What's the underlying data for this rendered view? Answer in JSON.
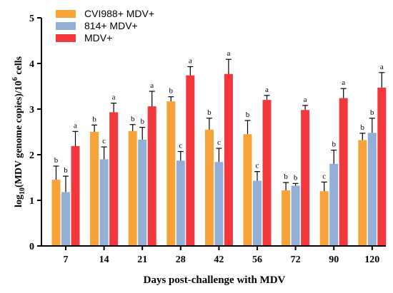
{
  "chart_data": {
    "type": "bar",
    "categories": [
      "7",
      "14",
      "21",
      "28",
      "42",
      "56",
      "72",
      "90",
      "120"
    ],
    "xlabel": "Days post-challenge with MDV",
    "ylabel": {
      "prefix": "log",
      "sub": "10",
      "middle": "(MDV genome copies)/10",
      "sup": "6",
      "suffix": " cells"
    },
    "ylim": [
      0,
      5
    ],
    "yticks": [
      "0",
      "1",
      "2",
      "3",
      "4",
      "5"
    ],
    "legend_position": "top-left",
    "series": [
      {
        "name": "CVI988+ MDV+",
        "color": "#f8a23a",
        "values": [
          1.45,
          2.5,
          2.52,
          3.17,
          2.55,
          2.45,
          1.22,
          1.2,
          2.32
        ],
        "errors": [
          0.3,
          0.15,
          0.14,
          0.1,
          0.25,
          0.3,
          0.17,
          0.2,
          0.15
        ],
        "labels": [
          "b",
          "b",
          "b",
          "b",
          "b",
          "b",
          "b",
          "c",
          "b"
        ]
      },
      {
        "name": "814+ MDV+",
        "color": "#93afd6",
        "values": [
          1.18,
          1.9,
          2.33,
          1.87,
          1.84,
          1.43,
          1.32,
          1.8,
          2.48
        ],
        "errors": [
          0.35,
          0.27,
          0.27,
          0.2,
          0.3,
          0.2,
          0.05,
          0.3,
          0.32
        ],
        "labels": [
          "b",
          "c",
          "b",
          "c",
          "c",
          "c",
          "b",
          "b",
          "b"
        ]
      },
      {
        "name": "MDV+",
        "color": "#f3383d",
        "values": [
          2.19,
          2.93,
          3.06,
          3.74,
          3.77,
          3.2,
          2.98,
          3.24,
          3.47
        ],
        "errors": [
          0.32,
          0.2,
          0.33,
          0.19,
          0.32,
          0.1,
          0.1,
          0.21,
          0.33
        ],
        "labels": [
          "a",
          "a",
          "a",
          "a",
          "a",
          "a",
          "a",
          "a",
          "a"
        ]
      }
    ]
  }
}
